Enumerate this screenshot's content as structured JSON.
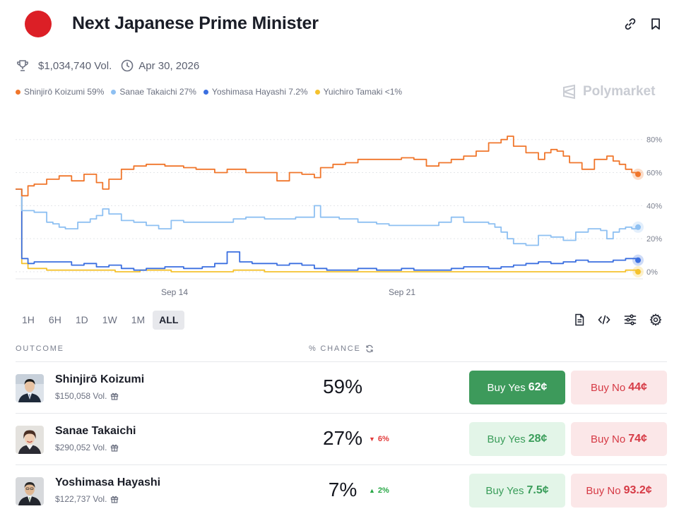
{
  "header": {
    "title": "Next Japanese Prime Minister",
    "volume": "$1,034,740 Vol.",
    "end_date": "Apr 30, 2026"
  },
  "watermark": "Polymarket",
  "legend": [
    {
      "label": "Shinjirō Koizumi 59%",
      "color": "#f0762b"
    },
    {
      "label": "Sanae Takaichi 27%",
      "color": "#8ec0f2"
    },
    {
      "label": "Yoshimasa Hayashi 7.2%",
      "color": "#3b6fe0"
    },
    {
      "label": "Yuichiro Tamaki <1%",
      "color": "#f5c22e"
    }
  ],
  "chart_data": {
    "type": "line",
    "x_ticks": [
      "Sep 14",
      "Sep 21"
    ],
    "y_ticks": [
      "0%",
      "20%",
      "40%",
      "60%",
      "80%"
    ],
    "ylim": [
      0,
      85
    ],
    "x_range": [
      0,
      100
    ],
    "grid": true,
    "series": [
      {
        "name": "Shinjirō Koizumi",
        "color": "#f0762b",
        "x": [
          0,
          1,
          2,
          3,
          5,
          7,
          9,
          11,
          13,
          14,
          15,
          17,
          19,
          21,
          24,
          27,
          29,
          32,
          34,
          37,
          40,
          42,
          44,
          46,
          48,
          49,
          51,
          53,
          55,
          57,
          59,
          62,
          64,
          66,
          68,
          70,
          72,
          74,
          76,
          78,
          79,
          80,
          82,
          84,
          85,
          86,
          87,
          88,
          89,
          91,
          93,
          95,
          96,
          97,
          98,
          99,
          100
        ],
        "values": [
          50,
          46,
          52,
          53,
          56,
          58,
          55,
          59,
          54,
          50,
          56,
          62,
          64,
          65,
          64,
          63,
          62,
          60,
          62,
          60,
          60,
          55,
          60,
          59,
          57,
          63,
          65,
          66,
          68,
          68,
          68,
          69,
          68,
          64,
          66,
          68,
          70,
          73,
          78,
          80,
          82,
          76,
          72,
          68,
          72,
          74,
          73,
          70,
          66,
          62,
          68,
          70,
          67,
          65,
          62,
          60,
          59
        ]
      },
      {
        "name": "Sanae Takaichi",
        "color": "#8ec0f2",
        "x": [
          0,
          1,
          2,
          3,
          4,
          5,
          6,
          7,
          8,
          10,
          12,
          13,
          14,
          15,
          17,
          19,
          21,
          23,
          25,
          27,
          30,
          33,
          35,
          37,
          40,
          42,
          45,
          47,
          48,
          49,
          52,
          55,
          58,
          60,
          63,
          66,
          68,
          70,
          72,
          74,
          76,
          77,
          78,
          79,
          80,
          82,
          84,
          86,
          88,
          90,
          92,
          94,
          95,
          96,
          97,
          98,
          99,
          100
        ],
        "values": [
          50,
          37,
          37,
          36,
          36,
          30,
          29,
          27,
          26,
          30,
          32,
          34,
          38,
          35,
          31,
          30,
          28,
          26,
          31,
          30,
          30,
          30,
          32,
          33,
          32,
          32,
          33,
          33,
          40,
          33,
          32,
          30,
          29,
          28,
          28,
          28,
          30,
          33,
          30,
          30,
          29,
          27,
          24,
          20,
          17,
          16,
          22,
          21,
          19,
          24,
          26,
          25,
          20,
          24,
          26,
          27,
          26,
          27
        ]
      },
      {
        "name": "Yoshimasa Hayashi",
        "color": "#3b6fe0",
        "x": [
          0,
          1,
          2,
          3,
          5,
          7,
          9,
          11,
          13,
          15,
          17,
          19,
          21,
          24,
          27,
          30,
          32,
          34,
          36,
          38,
          40,
          42,
          44,
          46,
          48,
          50,
          52,
          55,
          58,
          60,
          62,
          64,
          66,
          68,
          70,
          72,
          74,
          76,
          78,
          80,
          82,
          84,
          86,
          88,
          90,
          92,
          94,
          96,
          98,
          99,
          100
        ],
        "values": [
          50,
          8,
          5,
          6,
          6,
          6,
          4,
          5,
          3,
          4,
          2,
          1,
          2,
          3,
          2,
          3,
          5,
          12,
          6,
          5,
          5,
          4,
          5,
          4,
          2,
          1,
          1,
          2,
          1,
          1,
          2,
          1,
          1,
          1,
          2,
          3,
          3,
          2,
          3,
          4,
          5,
          6,
          5,
          6,
          7,
          6,
          6,
          7,
          8,
          8,
          7
        ]
      },
      {
        "name": "Yuichiro Tamaki",
        "color": "#f5c22e",
        "x": [
          0,
          1,
          2,
          3,
          5,
          8,
          12,
          16,
          20,
          25,
          30,
          35,
          40,
          45,
          50,
          55,
          60,
          65,
          70,
          75,
          80,
          85,
          90,
          95,
          98,
          100
        ],
        "values": [
          50,
          5,
          2,
          2,
          1,
          1,
          1,
          0,
          1,
          0,
          0,
          1,
          0,
          0,
          0,
          0,
          0,
          0,
          0,
          0,
          0,
          0,
          0,
          0,
          1,
          0
        ]
      }
    ]
  },
  "ranges": [
    "1H",
    "6H",
    "1D",
    "1W",
    "1M",
    "ALL"
  ],
  "active_range": "ALL",
  "table": {
    "outcome_label": "OUTCOME",
    "chance_label": "% CHANCE",
    "rows": [
      {
        "name": "Shinjirō Koizumi",
        "volume": "$150,058 Vol.",
        "chance": "59%",
        "delta": "",
        "yes_label": "Buy Yes",
        "yes_price": "62¢",
        "no_label": "Buy No",
        "no_price": "44¢"
      },
      {
        "name": "Sanae Takaichi",
        "volume": "$290,052 Vol.",
        "chance": "27%",
        "delta": "6%",
        "yes_label": "Buy Yes",
        "yes_price": "28¢",
        "no_label": "Buy No",
        "no_price": "74¢"
      },
      {
        "name": "Yoshimasa Hayashi",
        "volume": "$122,737 Vol.",
        "chance": "7%",
        "delta": "2%",
        "yes_label": "Buy Yes",
        "yes_price": "7.5¢",
        "no_label": "Buy No",
        "no_price": "93.2¢"
      }
    ]
  }
}
